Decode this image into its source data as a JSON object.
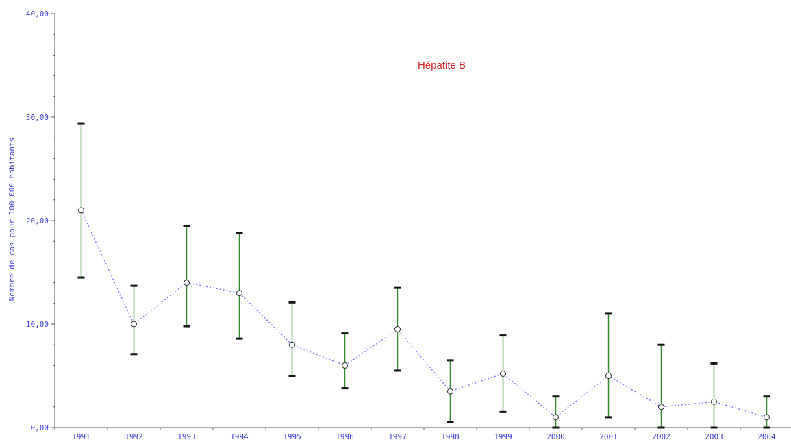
{
  "chart_data": {
    "type": "line",
    "title": "Hépatite B",
    "xlabel": "",
    "ylabel": "Nombre de cas pour 100 000 habitants",
    "ylim": [
      0,
      40
    ],
    "yticks": [
      "0,00",
      "10,00",
      "20,00",
      "30,00",
      "40,00"
    ],
    "ytick_values": [
      0,
      10,
      20,
      30,
      40
    ],
    "categories": [
      "1991",
      "1992",
      "1993",
      "1994",
      "1995",
      "1996",
      "1997",
      "1998",
      "1999",
      "2000",
      "2001",
      "2002",
      "2003",
      "2004"
    ],
    "series": [
      {
        "values": [
          21.0,
          10.0,
          14.0,
          13.0,
          8.0,
          6.0,
          9.5,
          3.5,
          5.2,
          1.0,
          5.0,
          2.0,
          2.5,
          1.0
        ],
        "lower": [
          14.5,
          7.1,
          9.8,
          8.6,
          5.0,
          3.8,
          5.5,
          0.5,
          1.5,
          0.0,
          1.0,
          0.0,
          0.0,
          0.0
        ],
        "upper": [
          29.4,
          13.7,
          19.5,
          18.8,
          12.1,
          9.1,
          13.5,
          6.5,
          8.9,
          3.0,
          11.0,
          8.0,
          6.2,
          3.0
        ]
      }
    ],
    "grid": false,
    "colors": {
      "line": "#6b6bff",
      "error_bar": "#2f8a2f",
      "cap": "#111111",
      "axis": "#555555",
      "tick_label": "#3b3bd9",
      "title": "#d42a2a"
    }
  }
}
